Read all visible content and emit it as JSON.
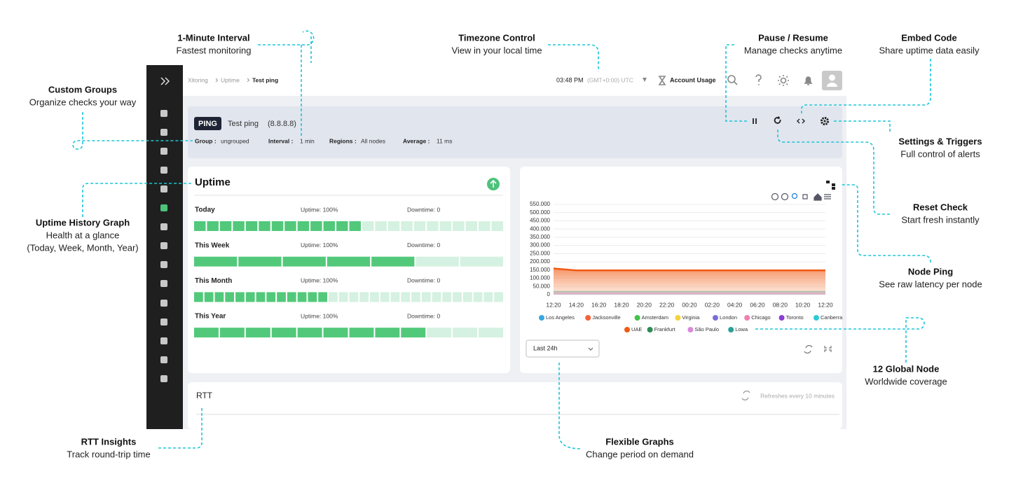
{
  "callouts": [
    {
      "title": "1-Minute Interval",
      "lines": [
        "Fastest monitoring"
      ]
    },
    {
      "title": "Timezone Control",
      "lines": [
        "View in your local time"
      ]
    },
    {
      "title": "Pause / Resume",
      "lines": [
        "Manage checks anytime"
      ]
    },
    {
      "title": "Embed Code",
      "lines": [
        "Share uptime data easily"
      ]
    },
    {
      "title": "Custom Groups",
      "lines": [
        "Organize checks your way"
      ]
    },
    {
      "title": "Settings & Triggers",
      "lines": [
        "Full control of alerts"
      ]
    },
    {
      "title": "Uptime History Graph",
      "lines": [
        "Health at a glance",
        "(Today, Week, Month, Year)"
      ]
    },
    {
      "title": "Reset Check",
      "lines": [
        "Start fresh instantly"
      ]
    },
    {
      "title": "Node Ping",
      "lines": [
        "See raw latency per node"
      ]
    },
    {
      "title": "12 Global Node",
      "lines": [
        "Worldwide coverage"
      ]
    },
    {
      "title": "RTT Insights",
      "lines": [
        "Track round-trip time"
      ]
    },
    {
      "title": "Flexible Graphs",
      "lines": [
        "Change period on demand"
      ]
    }
  ],
  "app": {
    "breadcrumb": [
      "Xitoring",
      "Uptime",
      "Test ping"
    ],
    "time": "03:48 PM",
    "timezone": "(GMT+0:00) UTC",
    "account": "Account Usage"
  },
  "check": {
    "badge": "PING",
    "name": "Test ping",
    "target": "(8.8.8.8)",
    "fields": [
      {
        "label": "Group :",
        "value": "ungrouped"
      },
      {
        "label": "Interval :",
        "value": "1 min"
      },
      {
        "label": "Regions :",
        "value": "All nodes"
      },
      {
        "label": "Average :",
        "value": "11 ms"
      }
    ]
  },
  "uptime": {
    "title": "Uptime",
    "rows": [
      {
        "label": "Today",
        "uptime": "Uptime: 100%",
        "downtime": "Downtime: 0",
        "segments": 24,
        "filled": 13
      },
      {
        "label": "This Week",
        "uptime": "Uptime: 100%",
        "downtime": "Downtime: 0",
        "segments": 7,
        "filled": 5
      },
      {
        "label": "This Month",
        "uptime": "Uptime: 100%",
        "downtime": "Downtime: 0",
        "segments": 30,
        "filled": 13
      },
      {
        "label": "This Year",
        "uptime": "Uptime: 100%",
        "downtime": "Downtime: 0",
        "segments": 12,
        "filled": 9
      }
    ]
  },
  "node_chart": {
    "type": "line",
    "ylim": [
      0,
      550
    ],
    "yticks": [
      {
        "value": 0,
        "label": "0"
      },
      {
        "value": 50,
        "label": "50.000"
      },
      {
        "value": 100,
        "label": "100.000"
      },
      {
        "value": 150,
        "label": "150.000"
      },
      {
        "value": 200,
        "label": "200.000"
      },
      {
        "value": 250,
        "label": "250.000"
      },
      {
        "value": 300,
        "label": "300.000"
      },
      {
        "value": 350,
        "label": "350.000"
      },
      {
        "value": 400,
        "label": "400.000"
      },
      {
        "value": 450,
        "label": "450.000"
      },
      {
        "value": 500,
        "label": "500.000"
      },
      {
        "value": 550,
        "label": "550.000"
      }
    ],
    "x": [
      "12:20",
      "14:20",
      "16:20",
      "18:20",
      "20:20",
      "22:20",
      "00:20",
      "02:20",
      "04:20",
      "06:20",
      "08:20",
      "10:20",
      "12:20"
    ],
    "series": [
      {
        "name": "Los Angeles",
        "color": "#3ba7e0",
        "values": [
          12,
          12,
          12,
          12,
          12,
          12,
          12,
          12,
          12,
          12,
          12,
          12,
          12
        ]
      },
      {
        "name": "Jacksonville",
        "color": "#f4623a",
        "values": [
          12,
          12,
          12,
          12,
          12,
          12,
          12,
          12,
          12,
          12,
          12,
          12,
          12
        ]
      },
      {
        "name": "Amsterdam",
        "color": "#44c24a",
        "values": [
          12,
          12,
          12,
          12,
          12,
          12,
          12,
          12,
          12,
          12,
          12,
          12,
          12
        ]
      },
      {
        "name": "Virginia",
        "color": "#f5d33a",
        "values": [
          12,
          12,
          12,
          12,
          12,
          12,
          12,
          12,
          12,
          12,
          12,
          12,
          12
        ]
      },
      {
        "name": "London",
        "color": "#7a6fd6",
        "values": [
          6,
          6,
          6,
          6,
          6,
          6,
          6,
          6,
          6,
          6,
          6,
          6,
          6
        ]
      },
      {
        "name": "Chicago",
        "color": "#f07fb0",
        "values": [
          12,
          12,
          12,
          12,
          12,
          12,
          12,
          12,
          12,
          12,
          12,
          12,
          12
        ]
      },
      {
        "name": "Toronto",
        "color": "#8a3fd1",
        "values": [
          12,
          12,
          12,
          12,
          12,
          12,
          12,
          12,
          12,
          12,
          12,
          12,
          12
        ]
      },
      {
        "name": "Canberra",
        "color": "#2ccbd6",
        "values": [
          16,
          16,
          16,
          16,
          16,
          16,
          16,
          16,
          16,
          16,
          16,
          16,
          16
        ]
      },
      {
        "name": "UAE",
        "color": "#f05a14",
        "values": [
          160,
          148,
          148,
          148,
          148,
          148,
          148,
          148,
          148,
          148,
          148,
          148,
          148
        ]
      },
      {
        "name": "Frankfurt",
        "color": "#2e8b57",
        "values": [
          12,
          12,
          12,
          12,
          12,
          12,
          12,
          12,
          12,
          12,
          12,
          12,
          12
        ]
      },
      {
        "name": "São Paulo",
        "color": "#d98ad9",
        "values": [
          12,
          12,
          12,
          12,
          12,
          12,
          12,
          12,
          12,
          12,
          12,
          12,
          12
        ]
      },
      {
        "name": "Lowa",
        "color": "#2aa198",
        "values": [
          18,
          18,
          18,
          18,
          18,
          18,
          18,
          18,
          18,
          18,
          18,
          18,
          18
        ]
      }
    ],
    "area_series": 8,
    "grid": true,
    "period": "Last 24h"
  },
  "rtt": {
    "title": "RTT",
    "refresh": "Refreshes every 10 minutes"
  }
}
